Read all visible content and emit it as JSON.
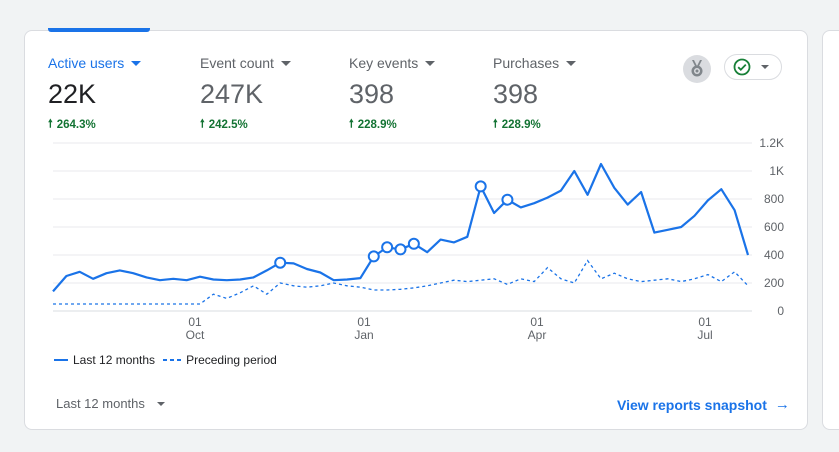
{
  "metrics": [
    {
      "label": "Active users",
      "value": "22K",
      "change": "264.3%",
      "active": true
    },
    {
      "label": "Event count",
      "value": "247K",
      "change": "242.5%",
      "active": false
    },
    {
      "label": "Key events",
      "value": "398",
      "change": "228.9%",
      "active": false
    },
    {
      "label": "Purchases",
      "value": "398",
      "change": "228.9%",
      "active": false
    }
  ],
  "toolbar": {
    "insights_icon": "insights-icon",
    "status_icon": "check-circle-icon"
  },
  "legend": {
    "current": "Last 12 months",
    "previous": "Preceding period"
  },
  "footer": {
    "period_label": "Last 12 months",
    "snapshot_link": "View reports snapshot"
  },
  "colors": {
    "accent": "#1a73e8",
    "positive": "#137333",
    "grid": "#e8eaed",
    "text_secondary": "#5f6368"
  },
  "chart_data": {
    "type": "line",
    "title": "",
    "xlabel": "",
    "ylabel": "",
    "ylim": [
      0,
      1200
    ],
    "y_ticks": [
      0,
      200,
      400,
      600,
      800,
      1000,
      1200
    ],
    "y_tick_labels": [
      "0",
      "200",
      "400",
      "600",
      "800",
      "1K",
      "1.2K"
    ],
    "x_tick_labels": [
      {
        "day": "01",
        "month": "Oct"
      },
      {
        "day": "01",
        "month": "Jan"
      },
      {
        "day": "01",
        "month": "Apr"
      },
      {
        "day": "01",
        "month": "Jul"
      }
    ],
    "grid": true,
    "legend_position": "bottom-left",
    "series": [
      {
        "name": "Last 12 months",
        "style": "solid",
        "values": [
          140,
          250,
          280,
          230,
          270,
          290,
          270,
          240,
          220,
          230,
          220,
          245,
          225,
          220,
          225,
          240,
          290,
          345,
          340,
          300,
          275,
          220,
          225,
          235,
          390,
          455,
          440,
          480,
          420,
          510,
          490,
          530,
          890,
          700,
          795,
          740,
          770,
          810,
          860,
          1000,
          830,
          1050,
          880,
          760,
          850,
          560,
          580,
          600,
          680,
          790,
          870,
          720,
          400
        ],
        "markers": [
          17,
          24,
          25,
          26,
          27,
          32,
          34
        ]
      },
      {
        "name": "Preceding period",
        "style": "dashed",
        "values": [
          50,
          50,
          50,
          50,
          50,
          50,
          50,
          50,
          50,
          50,
          50,
          50,
          120,
          90,
          130,
          180,
          120,
          200,
          180,
          170,
          180,
          200,
          180,
          170,
          150,
          150,
          155,
          165,
          180,
          200,
          220,
          210,
          220,
          230,
          190,
          230,
          210,
          310,
          230,
          200,
          360,
          230,
          270,
          230,
          210,
          220,
          230,
          210,
          230,
          260,
          210,
          280,
          180
        ]
      }
    ]
  }
}
